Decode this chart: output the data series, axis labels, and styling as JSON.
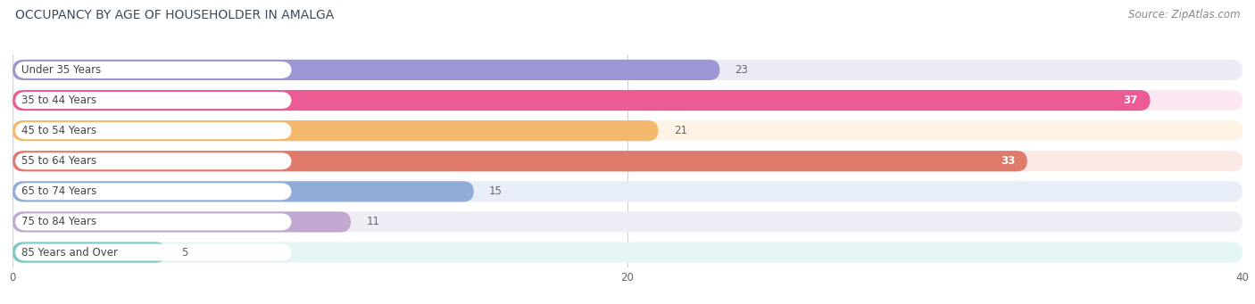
{
  "title": "OCCUPANCY BY AGE OF HOUSEHOLDER IN AMALGA",
  "source": "Source: ZipAtlas.com",
  "categories": [
    "Under 35 Years",
    "35 to 44 Years",
    "45 to 54 Years",
    "55 to 64 Years",
    "65 to 74 Years",
    "75 to 84 Years",
    "85 Years and Over"
  ],
  "values": [
    23,
    37,
    21,
    33,
    15,
    11,
    5
  ],
  "bar_colors": [
    "#9b96d4",
    "#ec5b94",
    "#f5b96e",
    "#e07a6a",
    "#91acd9",
    "#c0a8d0",
    "#7dc8c4"
  ],
  "bar_bg_colors": [
    "#eceaf5",
    "#fce8f2",
    "#fef3e4",
    "#fbe9e6",
    "#e8eef8",
    "#f0ecf5",
    "#e4f5f4"
  ],
  "label_bg_color": "#ffffff",
  "xlim": [
    0,
    40
  ],
  "xticks": [
    0,
    20,
    40
  ],
  "title_fontsize": 10,
  "source_fontsize": 8.5,
  "label_fontsize": 8.5,
  "value_fontsize": 8.5,
  "value_color_inside": "#ffffff",
  "value_color_outside": "#666666",
  "background_color": "#ffffff",
  "text_color": "#444444"
}
